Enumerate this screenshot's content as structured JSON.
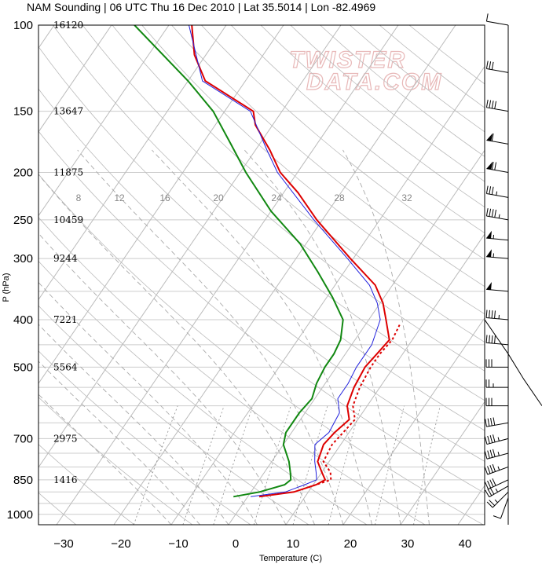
{
  "title": "NAM Sounding | 06 UTC Thu 16 Dec 2010 | Lat 35.5014 | Lon -82.4969",
  "watermark_line1": "TWISTER",
  "watermark_line2": "DATA.COM",
  "chart_data": {
    "type": "skew-t",
    "xlabel": "Temperature (C)",
    "ylabel": "P (hPa)",
    "x_ticks": [
      -30,
      -20,
      -10,
      0,
      10,
      20,
      30,
      40
    ],
    "p_ticks": [
      100,
      150,
      200,
      250,
      300,
      400,
      500,
      700,
      850,
      1000
    ],
    "xlim": [
      -34,
      47
    ],
    "plim": [
      100,
      1050
    ],
    "heights": [
      {
        "p": 100,
        "h": "16120"
      },
      {
        "p": 150,
        "h": "13647"
      },
      {
        "p": 200,
        "h": "11875"
      },
      {
        "p": 250,
        "h": "10459"
      },
      {
        "p": 300,
        "h": "9244"
      },
      {
        "p": 400,
        "h": "7221"
      },
      {
        "p": 500,
        "h": "5564"
      },
      {
        "p": 700,
        "h": "2975"
      },
      {
        "p": 850,
        "h": "1416"
      }
    ],
    "mixing_ratio_labels": [
      "8",
      "12",
      "16",
      "20",
      "24",
      "28",
      "32"
    ],
    "series": [
      {
        "name": "",
        "color": "#dd0000",
        "points": [
          [
            920,
            2.0
          ],
          [
            900,
            7.5
          ],
          [
            870,
            10.5
          ],
          [
            850,
            11.5
          ],
          [
            820,
            10.0
          ],
          [
            780,
            8.0
          ],
          [
            720,
            7.0
          ],
          [
            680,
            7.5
          ],
          [
            640,
            8.5
          ],
          [
            600,
            6.5
          ],
          [
            550,
            5.5
          ],
          [
            500,
            5.0
          ],
          [
            470,
            5.5
          ],
          [
            440,
            6.0
          ],
          [
            400,
            3.0
          ],
          [
            370,
            0.5
          ],
          [
            340,
            -3.0
          ],
          [
            300,
            -10.5
          ],
          [
            250,
            -21.0
          ],
          [
            220,
            -27.5
          ],
          [
            200,
            -33.0
          ],
          [
            180,
            -37.5
          ],
          [
            160,
            -43.0
          ],
          [
            150,
            -45.0
          ],
          [
            130,
            -57.0
          ],
          [
            115,
            -62.0
          ],
          [
            100,
            -66.0
          ]
        ]
      },
      {
        "name": "",
        "color": "#dd0000",
        "dash": "3,3",
        "points": [
          [
            880,
            9.5
          ],
          [
            850,
            12.5
          ],
          [
            820,
            11.5
          ],
          [
            780,
            9.0
          ],
          [
            720,
            8.5
          ],
          [
            680,
            9.0
          ],
          [
            640,
            9.5
          ],
          [
            600,
            7.5
          ],
          [
            550,
            6.5
          ],
          [
            500,
            6.0
          ],
          [
            470,
            6.0
          ],
          [
            440,
            6.5
          ],
          [
            410,
            6.0
          ]
        ]
      },
      {
        "name": "",
        "color": "#2222dd",
        "points": [
          [
            920,
            0.5
          ],
          [
            900,
            6.0
          ],
          [
            870,
            8.5
          ],
          [
            850,
            10.0
          ],
          [
            820,
            9.0
          ],
          [
            780,
            7.5
          ],
          [
            720,
            5.5
          ],
          [
            680,
            6.5
          ],
          [
            620,
            6.0
          ],
          [
            580,
            4.0
          ],
          [
            540,
            4.0
          ],
          [
            500,
            3.5
          ],
          [
            450,
            3.5
          ],
          [
            400,
            2.0
          ],
          [
            370,
            -0.5
          ],
          [
            340,
            -4.0
          ],
          [
            300,
            -11.0
          ],
          [
            250,
            -21.5
          ],
          [
            200,
            -33.5
          ],
          [
            180,
            -38.0
          ],
          [
            150,
            -45.5
          ],
          [
            130,
            -57.5
          ],
          [
            100,
            -66.5
          ]
        ]
      },
      {
        "name": "",
        "color": "#118811",
        "points": [
          [
            920,
            -2.5
          ],
          [
            900,
            1.5
          ],
          [
            870,
            5.0
          ],
          [
            850,
            5.5
          ],
          [
            820,
            4.5
          ],
          [
            780,
            3.0
          ],
          [
            720,
            0.0
          ],
          [
            680,
            -1.0
          ],
          [
            620,
            -1.0
          ],
          [
            580,
            -0.5
          ],
          [
            540,
            -1.5
          ],
          [
            500,
            -2.0
          ],
          [
            470,
            -2.0
          ],
          [
            440,
            -2.5
          ],
          [
            400,
            -4.5
          ],
          [
            360,
            -9.0
          ],
          [
            320,
            -14.5
          ],
          [
            280,
            -21.0
          ],
          [
            240,
            -30.0
          ],
          [
            200,
            -39.0
          ],
          [
            175,
            -45.0
          ],
          [
            150,
            -52.0
          ],
          [
            130,
            -60.0
          ],
          [
            100,
            -76.0
          ]
        ]
      }
    ],
    "winds": [
      {
        "p": 925,
        "wspd": 10,
        "wdir": 200
      },
      {
        "p": 900,
        "wspd": 25,
        "wdir": 225
      },
      {
        "p": 875,
        "wspd": 35,
        "wdir": 240
      },
      {
        "p": 850,
        "wspd": 40,
        "wdir": 245
      },
      {
        "p": 800,
        "wspd": 45,
        "wdir": 250
      },
      {
        "p": 750,
        "wspd": 45,
        "wdir": 255
      },
      {
        "p": 700,
        "wspd": 45,
        "wdir": 255
      },
      {
        "p": 650,
        "wspd": 40,
        "wdir": 260
      },
      {
        "p": 600,
        "wspd": 30,
        "wdir": 270
      },
      {
        "p": 550,
        "wspd": 25,
        "wdir": 270
      },
      {
        "p": 500,
        "wspd": 30,
        "wdir": 270
      },
      {
        "p": 450,
        "wspd": 40,
        "wdir": 275
      },
      {
        "p": 400,
        "wspd": 45,
        "wdir": 275
      },
      {
        "p": 350,
        "wspd": 50,
        "wdir": 275
      },
      {
        "p": 300,
        "wspd": 55,
        "wdir": 275
      },
      {
        "p": 275,
        "wspd": 55,
        "wdir": 275
      },
      {
        "p": 250,
        "wspd": 45,
        "wdir": 280
      },
      {
        "p": 225,
        "wspd": 35,
        "wdir": 280
      },
      {
        "p": 200,
        "wspd": 70,
        "wdir": 280
      },
      {
        "p": 175,
        "wspd": 60,
        "wdir": 280
      },
      {
        "p": 150,
        "wspd": 40,
        "wdir": 280
      },
      {
        "p": 125,
        "wspd": 30,
        "wdir": 280
      },
      {
        "p": 100,
        "wspd": 10,
        "wdir": 280
      }
    ]
  }
}
